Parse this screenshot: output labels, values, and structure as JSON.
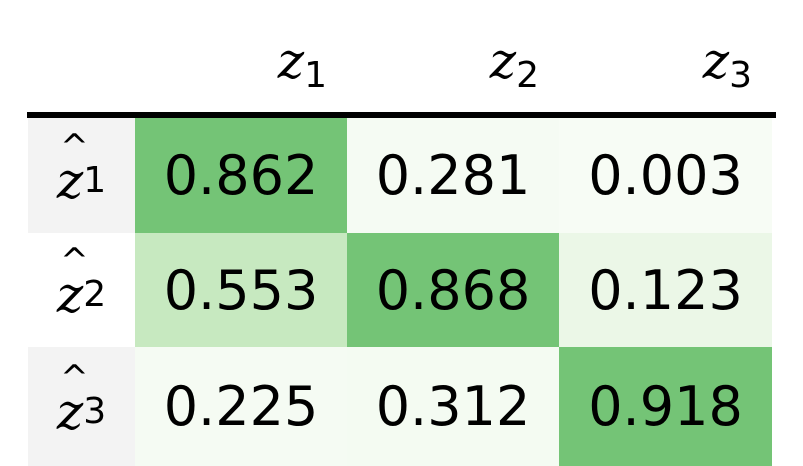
{
  "chart_data": {
    "type": "table",
    "column_headers": [
      {
        "base": "z",
        "sub": "1"
      },
      {
        "base": "z",
        "sub": "2"
      },
      {
        "base": "z",
        "sub": "3"
      }
    ],
    "row_headers": [
      {
        "base": "z",
        "hat": "^",
        "sub": "1"
      },
      {
        "base": "z",
        "hat": "^",
        "sub": "2"
      },
      {
        "base": "z",
        "hat": "^",
        "sub": "3"
      }
    ],
    "values": [
      [
        "0.862",
        "0.281",
        "0.003"
      ],
      [
        "0.553",
        "0.868",
        "0.123"
      ],
      [
        "0.225",
        "0.312",
        "0.918"
      ]
    ],
    "colormap": "Greens",
    "cell_colors": [
      [
        "#74c476",
        "#f5fbf3",
        "#f7fcf5"
      ],
      [
        "#c7e9c0",
        "#74c476",
        "#ebf7e7"
      ],
      [
        "#f5fbf3",
        "#f4fbf2",
        "#74c476"
      ]
    ]
  }
}
